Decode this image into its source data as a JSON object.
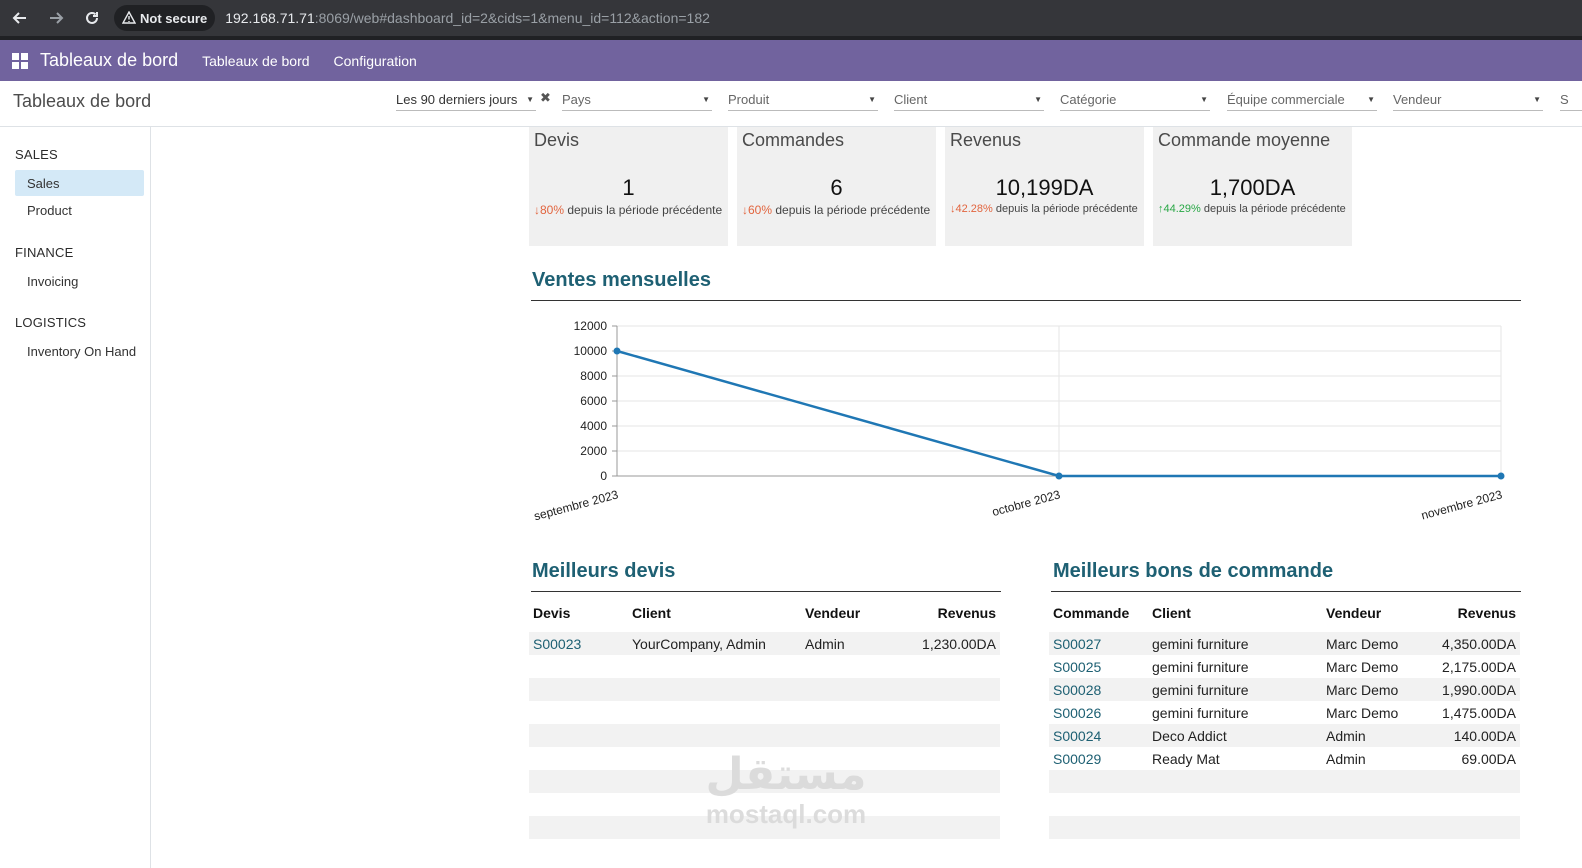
{
  "browser": {
    "security_label": "Not secure",
    "url_host": "192.168.71.71",
    "url_rest": ":8069/web#dashboard_id=2&cids=1&menu_id=112&action=182"
  },
  "navbar": {
    "brand": "Tableaux de bord",
    "links": [
      "Tableaux de bord",
      "Configuration"
    ]
  },
  "control_panel": {
    "breadcrumb": "Tableaux de bord",
    "date_filter": "Les 90 derniers jours",
    "filters": [
      "Pays",
      "Produit",
      "Client",
      "Catégorie",
      "Équipe commerciale",
      "Vendeur",
      "S"
    ]
  },
  "sidebar": {
    "sections": [
      {
        "title": "SALES",
        "items": [
          "Sales",
          "Product"
        ]
      },
      {
        "title": "FINANCE",
        "items": [
          "Invoicing"
        ]
      },
      {
        "title": "LOGISTICS",
        "items": [
          "Inventory On Hand"
        ]
      }
    ]
  },
  "kpis": [
    {
      "title": "Devis",
      "value": "1",
      "pct": "80%",
      "direction": "down",
      "caption": "depuis la période précédente"
    },
    {
      "title": "Commandes",
      "value": "6",
      "pct": "60%",
      "direction": "down",
      "caption": "depuis la période précédente"
    },
    {
      "title": "Revenus",
      "value": "10,199DA",
      "pct": "42.28%",
      "direction": "down",
      "caption": "depuis la période précédente"
    },
    {
      "title": "Commande moyenne",
      "value": "1,700DA",
      "pct": "44.29%",
      "direction": "up",
      "caption": "depuis la période précédente"
    }
  ],
  "colors": {
    "down": "#e2653f",
    "up": "#28a745",
    "line": "#1f77b4",
    "heading": "#1e6073",
    "navbar": "#71639e"
  },
  "chart_section": {
    "title": "Ventes mensuelles"
  },
  "chart_data": {
    "type": "line",
    "title": "",
    "categories": [
      "septembre 2023",
      "octobre 2023",
      "novembre 2023"
    ],
    "series": [
      {
        "values": [
          10000,
          0,
          0
        ]
      }
    ],
    "ylim": [
      0,
      12000
    ],
    "yticks": [
      "0",
      "2000",
      "4000",
      "6000",
      "8000",
      "10000",
      "12000"
    ],
    "grid": true
  },
  "quotes": {
    "title": "Meilleurs devis",
    "headers": [
      "Devis",
      "Client",
      "Vendeur",
      "Revenus"
    ],
    "rows": [
      [
        "S00023",
        "YourCompany, Admin",
        "Admin",
        "1,230.00DA"
      ]
    ]
  },
  "orders": {
    "title": "Meilleurs bons de commande",
    "headers": [
      "Commande",
      "Client",
      "Vendeur",
      "Revenus"
    ],
    "rows": [
      [
        "S00027",
        "gemini furniture",
        "Marc Demo",
        "4,350.00DA"
      ],
      [
        "S00025",
        "gemini furniture",
        "Marc Demo",
        "2,175.00DA"
      ],
      [
        "S00028",
        "gemini furniture",
        "Marc Demo",
        "1,990.00DA"
      ],
      [
        "S00026",
        "gemini furniture",
        "Marc Demo",
        "1,475.00DA"
      ],
      [
        "S00024",
        "Deco Addict",
        "Admin",
        "140.00DA"
      ],
      [
        "S00029",
        "Ready Mat",
        "Admin",
        "69.00DA"
      ]
    ]
  },
  "watermark": {
    "arabic": "مستقل",
    "latin": "mostaql.com"
  }
}
